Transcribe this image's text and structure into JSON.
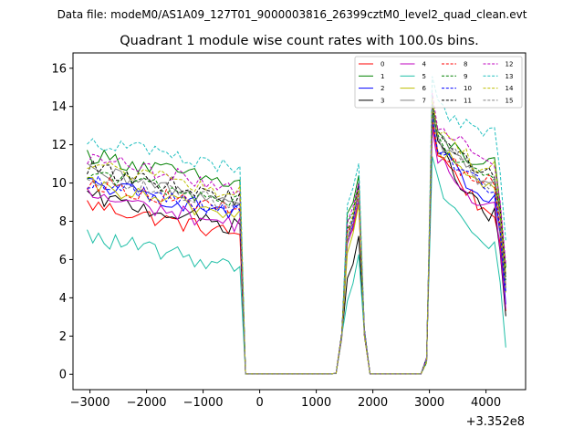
{
  "chart_data": {
    "type": "line",
    "suptitle": "Data file: modeM0/AS1A09_127T01_9000003816_26399cztM0_level2_quad_clean.evt",
    "title": "Quadrant 1 module wise count rates with 100.0s bins.",
    "xlabel": "",
    "ylabel": "",
    "x_offset_label": "+3.352e8",
    "xlim": [
      -3300,
      4700
    ],
    "ylim": [
      -0.8,
      16.8
    ],
    "x_ticks": [
      -3000,
      -2000,
      -1000,
      0,
      1000,
      2000,
      3000,
      4000
    ],
    "x_tick_labels": [
      "−3000",
      "−2000",
      "−1000",
      "0",
      "1000",
      "2000",
      "3000",
      "4000"
    ],
    "y_ticks": [
      0,
      2,
      4,
      6,
      8,
      10,
      12,
      14,
      16
    ],
    "y_tick_labels": [
      "0",
      "2",
      "4",
      "6",
      "8",
      "10",
      "12",
      "14",
      "16"
    ],
    "legend_position": "top-right",
    "x_segments": [
      [
        -3050,
        -2950,
        -2850,
        -2750,
        -2650,
        -2550,
        -2450,
        -2350,
        -2250,
        -2150,
        -2050,
        -1950,
        -1850,
        -1750,
        -1650,
        -1550,
        -1450,
        -1350,
        -1250,
        -1150,
        -1050,
        -950,
        -850,
        -750,
        -650,
        -550,
        -450,
        -350,
        -250,
        -150,
        -50,
        50,
        150,
        250,
        350,
        450,
        550,
        650,
        750,
        850,
        950,
        1050,
        1150,
        1250,
        1350,
        1450,
        1550,
        1650,
        1750,
        1850,
        1950,
        2050,
        2150,
        2250,
        2350,
        2450,
        2550,
        2650,
        2750,
        2850,
        2950,
        3050,
        3150,
        3250,
        3350,
        3450,
        3550,
        3650,
        3750,
        3850,
        3950,
        4050,
        4150,
        4250,
        4350
      ]
    ],
    "series": [
      {
        "name": "0",
        "color": "#ff0000",
        "dash": "solid",
        "base": 7.9,
        "peak1": 9.0,
        "peak2": 13.2,
        "post": 8.6
      },
      {
        "name": "1",
        "color": "#008000",
        "dash": "solid",
        "base": 10.5,
        "peak1": 10.4,
        "peak2": 14.0,
        "post": 10.9
      },
      {
        "name": "2",
        "color": "#0000ff",
        "dash": "solid",
        "base": 9.0,
        "peak1": 9.2,
        "peak2": 13.3,
        "post": 9.0
      },
      {
        "name": "3",
        "color": "#000000",
        "dash": "solid",
        "base": 8.3,
        "peak1": 7.2,
        "peak2": 13.5,
        "post": 8.4
      },
      {
        "name": "4",
        "color": "#bf00bf",
        "dash": "solid",
        "base": 8.4,
        "peak1": 9.1,
        "peak2": 12.8,
        "post": 8.8
      },
      {
        "name": "5",
        "color": "#1fbfa7",
        "dash": "solid",
        "base": 6.2,
        "peak1": 6.2,
        "peak2": 11.6,
        "post": 6.8
      },
      {
        "name": "6",
        "color": "#bfbf00",
        "dash": "solid",
        "base": 8.9,
        "peak1": 8.8,
        "peak2": 13.4,
        "post": 9.7
      },
      {
        "name": "7",
        "color": "#808080",
        "dash": "solid",
        "base": 9.6,
        "peak1": 9.6,
        "peak2": 13.7,
        "post": 10.1
      },
      {
        "name": "8",
        "color": "#ff0000",
        "dash": "dashed",
        "base": 9.1,
        "peak1": 9.3,
        "peak2": 13.2,
        "post": 10.0
      },
      {
        "name": "9",
        "color": "#008000",
        "dash": "dashed",
        "base": 9.6,
        "peak1": 9.9,
        "peak2": 13.8,
        "post": 10.4
      },
      {
        "name": "10",
        "color": "#0000ff",
        "dash": "dashed",
        "base": 9.1,
        "peak1": 9.5,
        "peak2": 13.3,
        "post": 9.8
      },
      {
        "name": "11",
        "color": "#000000",
        "dash": "dashed",
        "base": 9.8,
        "peak1": 9.7,
        "peak2": 14.0,
        "post": 10.6
      },
      {
        "name": "12",
        "color": "#bf00bf",
        "dash": "dashed",
        "base": 10.3,
        "peak1": 10.2,
        "peak2": 14.5,
        "post": 11.3
      },
      {
        "name": "13",
        "color": "#1fbfbf",
        "dash": "dashed",
        "base": 11.3,
        "peak1": 11.2,
        "peak2": 15.6,
        "post": 12.5
      },
      {
        "name": "14",
        "color": "#bfbf00",
        "dash": "dashed",
        "base": 10.0,
        "peak1": 9.8,
        "peak2": 14.2,
        "post": 10.8
      },
      {
        "name": "15",
        "color": "#808080",
        "dash": "dashed",
        "base": 9.4,
        "peak1": 9.4,
        "peak2": 13.9,
        "post": 10.1
      }
    ]
  }
}
